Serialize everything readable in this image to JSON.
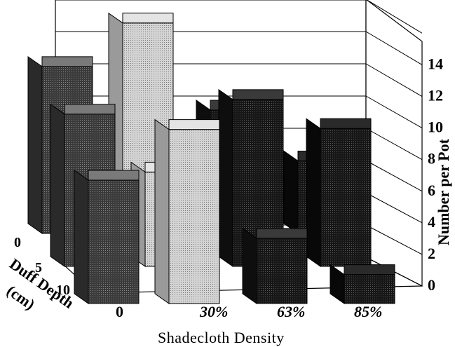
{
  "chart_data": {
    "type": "bar",
    "title": "",
    "x_axis": {
      "label": "Shadecloth Density",
      "categories": [
        "0",
        "30%",
        "63%",
        "85%"
      ]
    },
    "z_axis": {
      "label": "Duff Depth (cm)",
      "categories": [
        "0",
        "5",
        "10"
      ]
    },
    "y_axis": {
      "label": "Number per Pot",
      "ylim": [
        0,
        16
      ],
      "ticks": [
        "0",
        "2",
        "4",
        "6",
        "8",
        "10",
        "12",
        "14"
      ]
    },
    "grid": true,
    "series": [
      {
        "values": [
          11.5,
          14.5,
          8.5,
          5.0
        ]
      },
      {
        "values": [
          10.5,
          6.5,
          11.5,
          9.5
        ]
      },
      {
        "values": [
          8.5,
          12.0,
          4.5,
          2.0
        ]
      }
    ],
    "colors": {
      "density_0": "#5c5c5c",
      "density_30": "#c8c8c8",
      "density_63": "#2c2c2c",
      "density_85": "#141414",
      "depth_0_front": "#2f2f2f",
      "depth_5_front": "#242424"
    }
  }
}
